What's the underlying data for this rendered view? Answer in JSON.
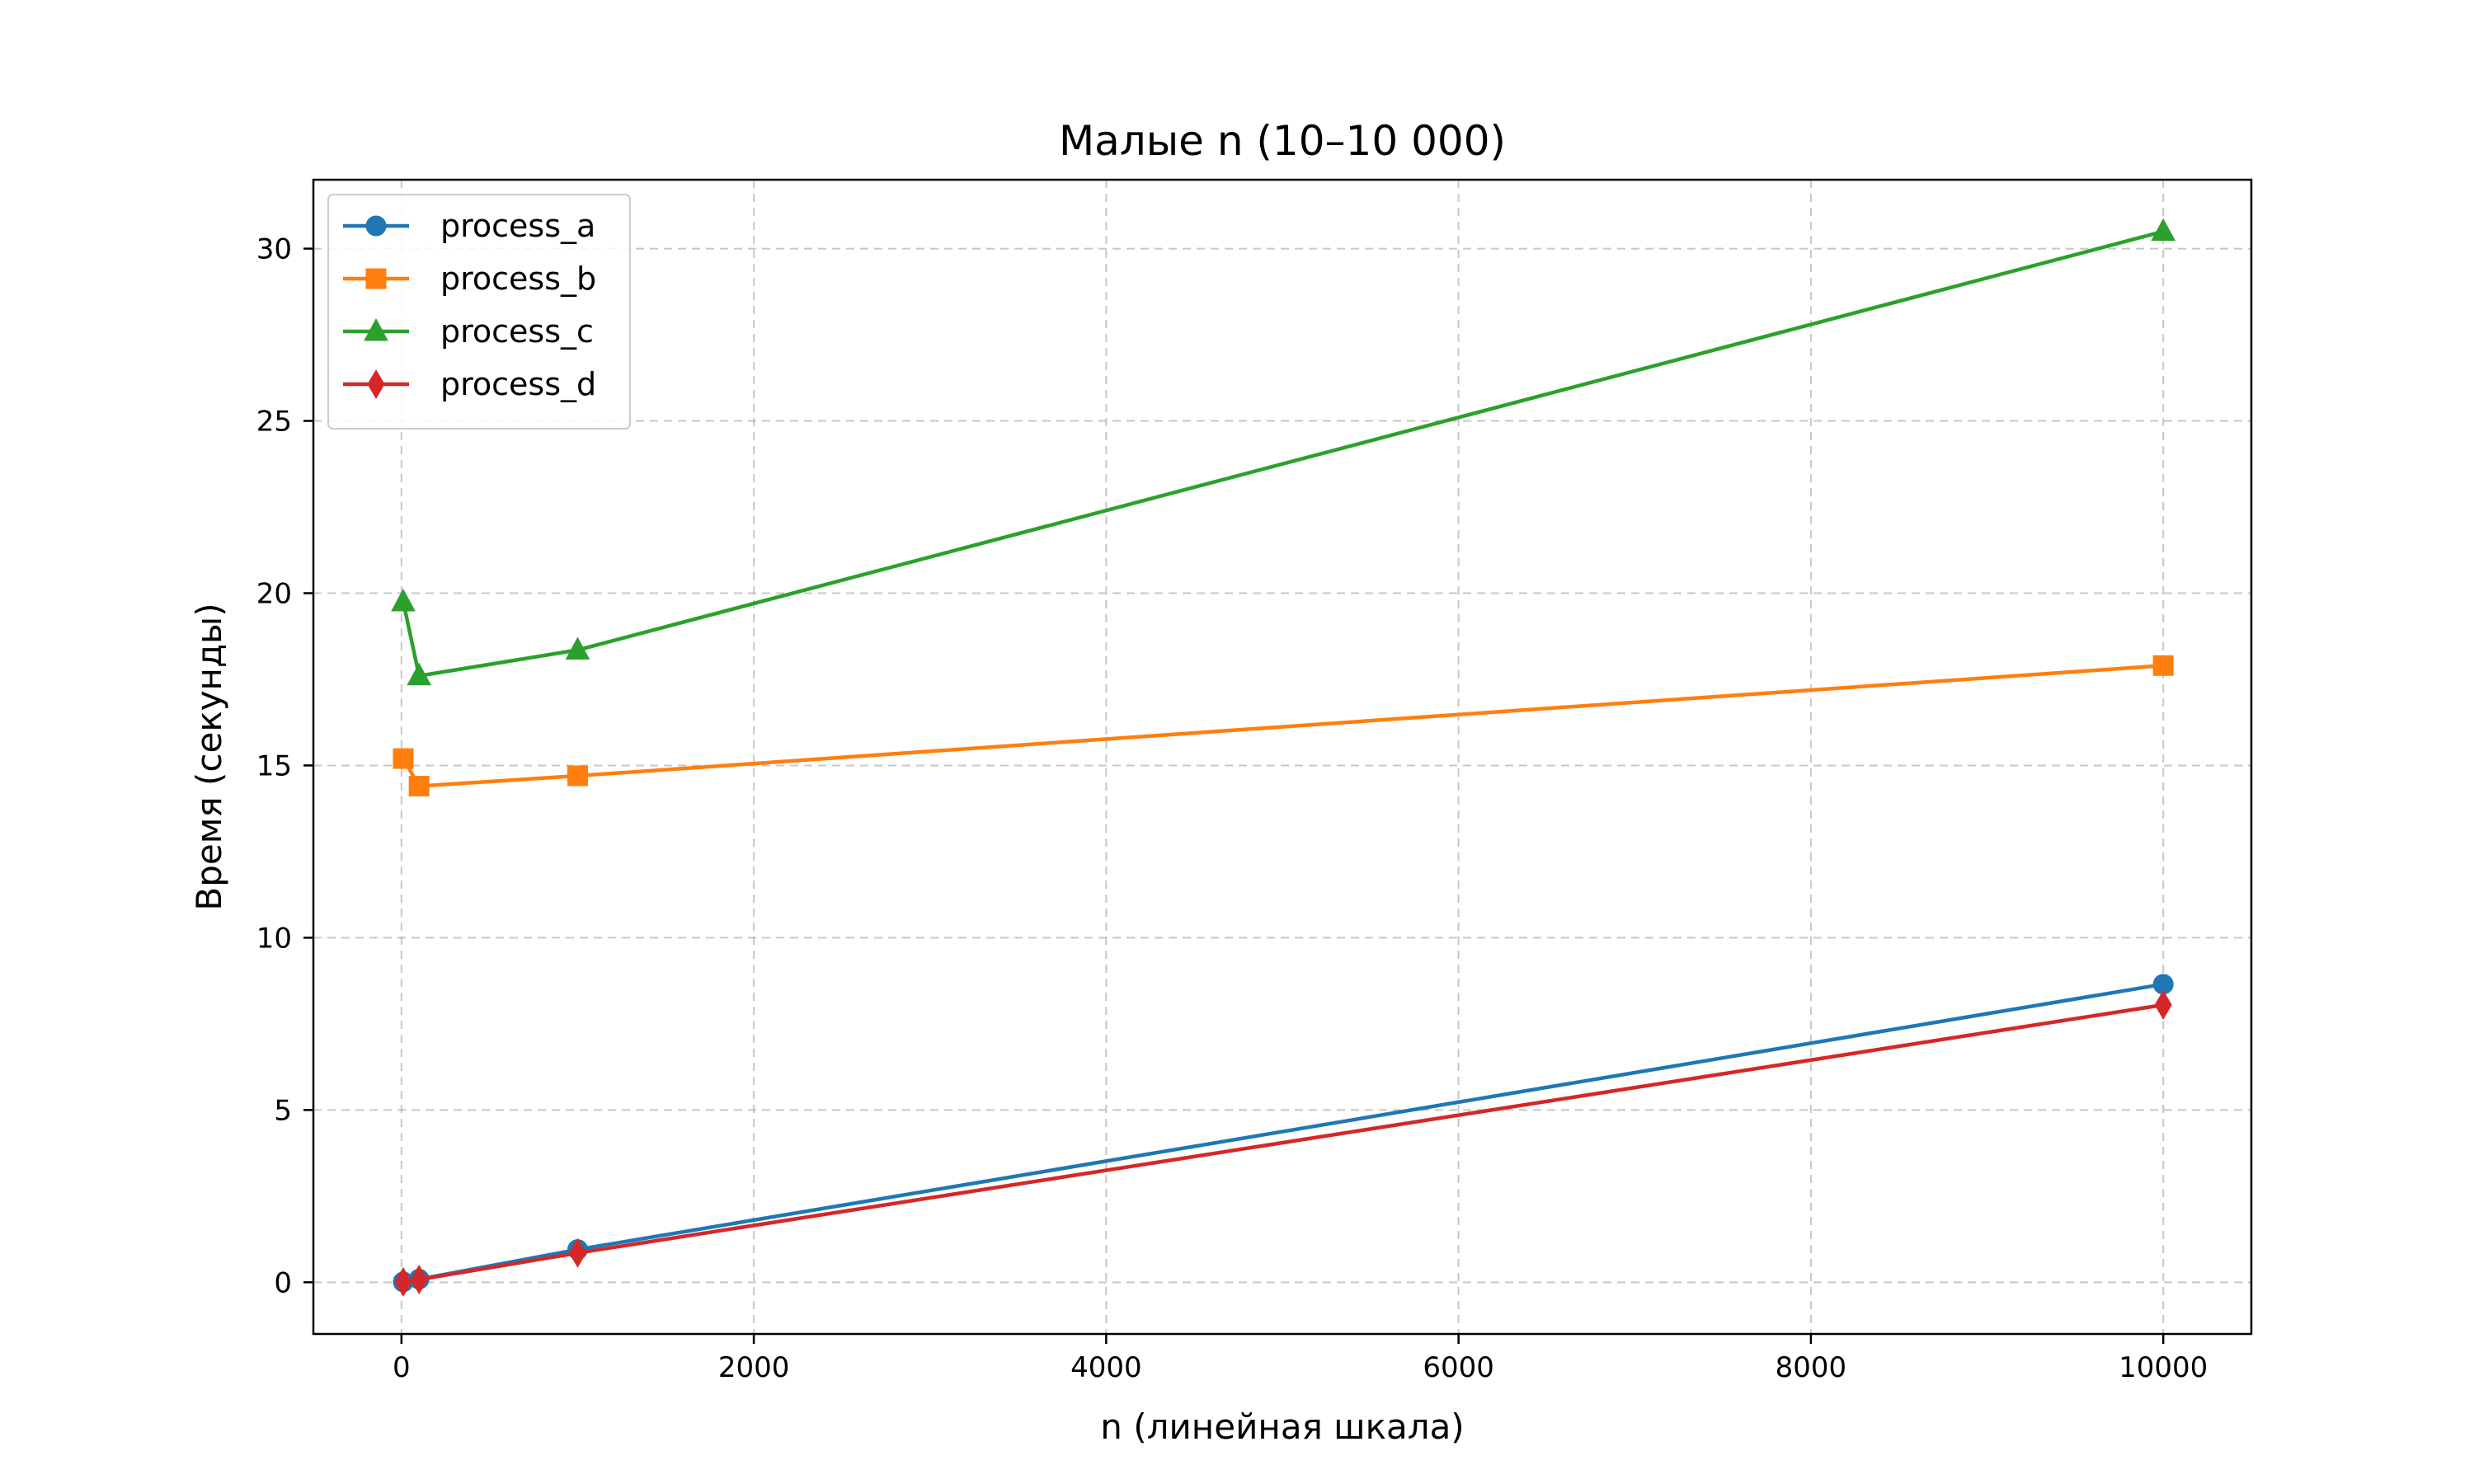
{
  "chart_data": {
    "type": "line",
    "title": "Малые n (10–10 000)",
    "xlabel": "n (линейная шкала)",
    "ylabel": "Время (секунды)",
    "xlim": [
      -500,
      10500
    ],
    "ylim": [
      -1.5,
      32
    ],
    "xticks": [
      0,
      2000,
      4000,
      6000,
      8000,
      10000
    ],
    "xtick_labels": [
      "0",
      "2000",
      "4000",
      "6000",
      "8000",
      "10000"
    ],
    "yticks": [
      0,
      5,
      10,
      15,
      20,
      25,
      30
    ],
    "ytick_labels": [
      "0",
      "5",
      "10",
      "15",
      "20",
      "25",
      "30"
    ],
    "grid": true,
    "legend_position": "top-left",
    "x": [
      10,
      100,
      1000,
      10000
    ],
    "series": [
      {
        "name": "process_a",
        "color": "#1f77b4",
        "marker": "circle",
        "values": [
          0.01,
          0.09,
          0.95,
          8.65
        ]
      },
      {
        "name": "process_b",
        "color": "#ff7f0e",
        "marker": "square",
        "values": [
          15.2,
          14.4,
          14.7,
          17.9
        ]
      },
      {
        "name": "process_c",
        "color": "#2ca02c",
        "marker": "triangle",
        "values": [
          19.75,
          17.6,
          18.35,
          30.5
        ]
      },
      {
        "name": "process_d",
        "color": "#d62728",
        "marker": "diamond",
        "values": [
          0.01,
          0.08,
          0.85,
          8.05
        ]
      }
    ]
  }
}
